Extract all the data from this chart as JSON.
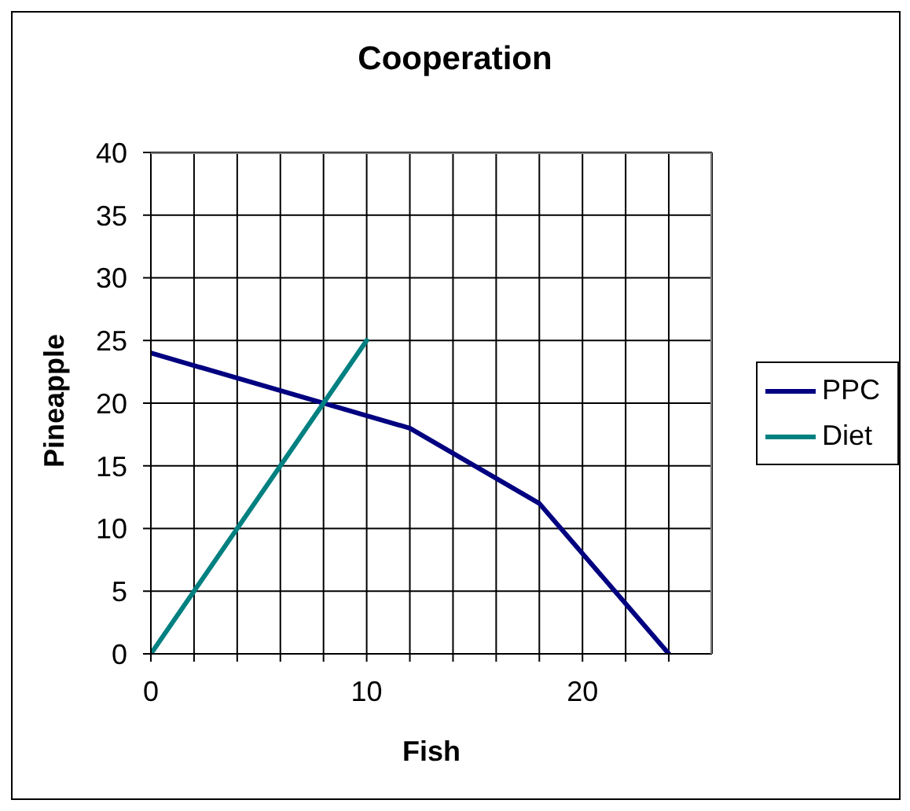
{
  "chart_data": {
    "type": "line",
    "title": "Cooperation",
    "xlabel": "Fish",
    "ylabel": "Pineapple",
    "xlim": [
      0,
      26
    ],
    "xticks": [
      0,
      {
        "value": 2,
        "label": null
      },
      {
        "value": 4,
        "label": null
      },
      {
        "value": 6,
        "label": null
      },
      {
        "value": 8,
        "label": null
      },
      10,
      {
        "value": 12,
        "label": null
      },
      {
        "value": 14,
        "label": null
      },
      {
        "value": 16,
        "label": null
      },
      {
        "value": 18,
        "label": null
      },
      20,
      {
        "value": 22,
        "label": null
      },
      {
        "value": 24,
        "label": null
      }
    ],
    "ylim": [
      0,
      40
    ],
    "yticks": [
      0,
      5,
      10,
      15,
      20,
      25,
      30,
      35,
      40
    ],
    "grid": true,
    "legend": "right",
    "line_style": "solid",
    "series": [
      {
        "name": "PPC",
        "color": "#000080",
        "x": [
          0,
          12,
          18,
          24
        ],
        "values": [
          24,
          18,
          12,
          0
        ]
      },
      {
        "name": "Diet",
        "color": "#008080",
        "x": [
          0,
          10
        ],
        "values": [
          0,
          25
        ]
      }
    ]
  }
}
